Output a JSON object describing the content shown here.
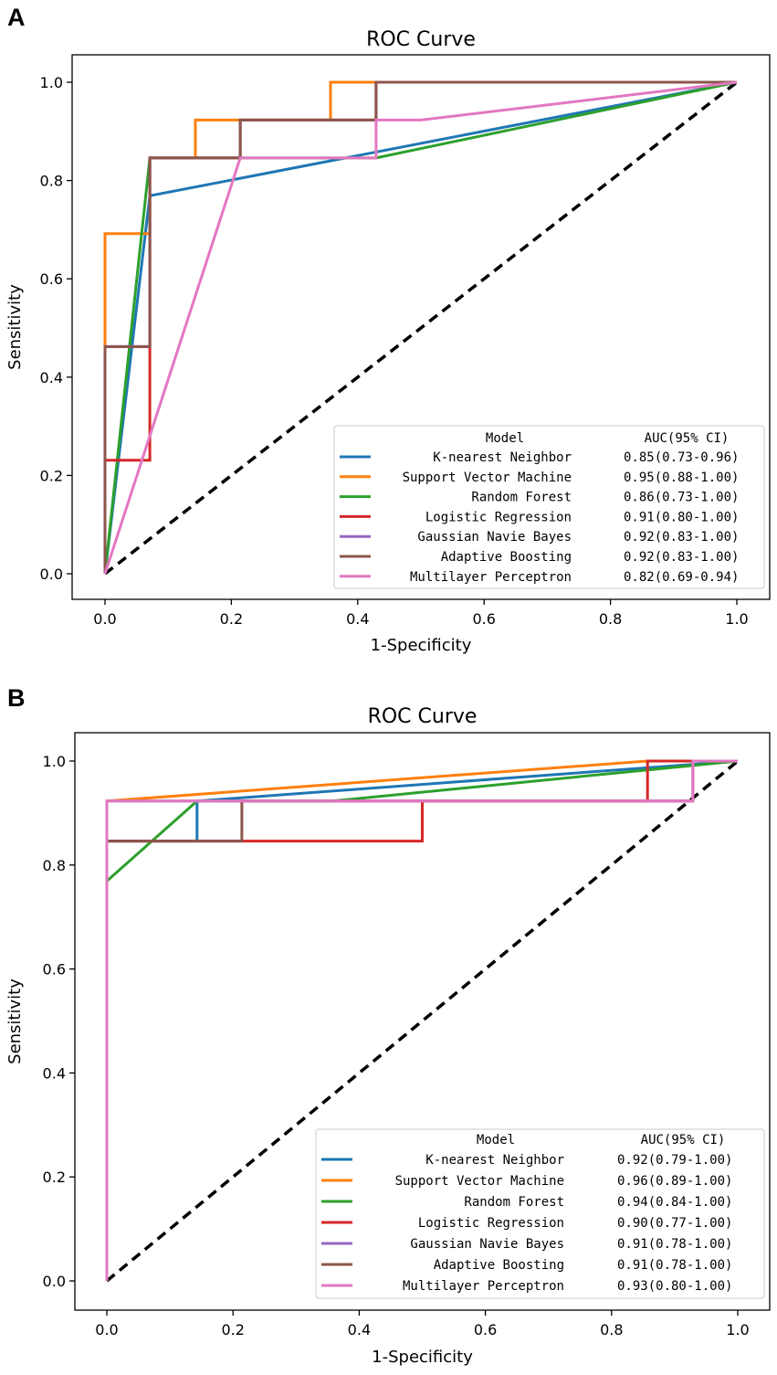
{
  "panels": [
    {
      "letter": "A"
    },
    {
      "letter": "B"
    }
  ],
  "chart_data": [
    {
      "type": "line",
      "title": "ROC Curve",
      "xlabel": "1-Specificity",
      "ylabel": "Sensitivity",
      "xlim": [
        0,
        1
      ],
      "ylim": [
        0,
        1
      ],
      "xticks": [
        "0.0",
        "0.2",
        "0.4",
        "0.6",
        "0.8",
        "1.0"
      ],
      "yticks": [
        "0.0",
        "0.2",
        "0.4",
        "0.6",
        "0.8",
        "1.0"
      ],
      "grid": false,
      "legend_placement": "bottom-right",
      "legend_header": {
        "model": "Model",
        "auc": "AUC(95% CI)"
      },
      "reference_line": {
        "name": "chance",
        "color": "#000000",
        "style": "dashed",
        "x": [
          0,
          1
        ],
        "y": [
          0,
          1
        ]
      },
      "series": [
        {
          "name": "K-nearest Neighbor",
          "auc": "0.85(0.73-0.96)",
          "color": "#1f77b4",
          "x": [
            0,
            0.071,
            1
          ],
          "y": [
            0,
            0.769,
            1
          ]
        },
        {
          "name": "Support Vector Machine",
          "auc": "0.95(0.88-1.00)",
          "color": "#ff7f0e",
          "x": [
            0,
            0,
            0.071,
            0.071,
            0.143,
            0.143,
            0.357,
            0.357,
            1
          ],
          "y": [
            0,
            0.692,
            0.692,
            0.846,
            0.846,
            0.923,
            0.923,
            1,
            1
          ]
        },
        {
          "name": "Random Forest",
          "auc": "0.86(0.73-1.00)",
          "color": "#2ca02c",
          "x": [
            0,
            0.071,
            0.429,
            1
          ],
          "y": [
            0,
            0.846,
            0.846,
            1
          ]
        },
        {
          "name": "Logistic Regression",
          "auc": "0.91(0.80-1.00)",
          "color": "#d62728",
          "x": [
            0,
            0,
            0.071,
            0.071,
            0.214,
            0.214,
            0.429,
            0.429,
            1
          ],
          "y": [
            0,
            0.231,
            0.231,
            0.846,
            0.846,
            0.923,
            0.923,
            1,
            1
          ]
        },
        {
          "name": "Gaussian Navie Bayes",
          "auc": "0.92(0.83-1.00)",
          "color": "#9467bd",
          "x": [
            0,
            0,
            0.071,
            0.071,
            0.214,
            0.214,
            0.429,
            0.429,
            1
          ],
          "y": [
            0,
            0.462,
            0.462,
            0.846,
            0.846,
            0.923,
            0.923,
            1,
            1
          ]
        },
        {
          "name": "Adaptive Boosting",
          "auc": "0.92(0.83-1.00)",
          "color": "#8c564b",
          "x": [
            0,
            0,
            0.071,
            0.071,
            0.214,
            0.214,
            0.429,
            0.429,
            1
          ],
          "y": [
            0,
            0.462,
            0.462,
            0.846,
            0.846,
            0.923,
            0.923,
            1,
            1
          ]
        },
        {
          "name": "Multilayer Perceptron",
          "auc": "0.82(0.69-0.94)",
          "color": "#e377c2",
          "x": [
            0,
            0.214,
            0.429,
            0.429,
            0.5,
            1
          ],
          "y": [
            0,
            0.846,
            0.846,
            0.923,
            0.923,
            1
          ]
        }
      ]
    },
    {
      "type": "line",
      "title": "ROC Curve",
      "xlabel": "1-Specificity",
      "ylabel": "Sensitivity",
      "xlim": [
        0,
        1
      ],
      "ylim": [
        0,
        1
      ],
      "xticks": [
        "0.0",
        "0.2",
        "0.4",
        "0.6",
        "0.8",
        "1.0"
      ],
      "yticks": [
        "0.0",
        "0.2",
        "0.4",
        "0.6",
        "0.8",
        "1.0"
      ],
      "grid": false,
      "legend_placement": "bottom-right",
      "legend_header": {
        "model": "Model",
        "auc": "AUC(95% CI)"
      },
      "reference_line": {
        "name": "chance",
        "color": "#000000",
        "style": "dashed",
        "x": [
          0,
          1
        ],
        "y": [
          0,
          1
        ]
      },
      "series": [
        {
          "name": "K-nearest Neighbor",
          "auc": "0.92(0.79-1.00)",
          "color": "#1f77b4",
          "x": [
            0,
            0,
            0.143,
            0.143,
            1
          ],
          "y": [
            0,
            0.846,
            0.846,
            0.923,
            1
          ]
        },
        {
          "name": "Support Vector Machine",
          "auc": "0.96(0.89-1.00)",
          "color": "#ff7f0e",
          "x": [
            0,
            0,
            0.857,
            1
          ],
          "y": [
            0,
            0.923,
            1,
            1
          ]
        },
        {
          "name": "Random Forest",
          "auc": "0.94(0.84-1.00)",
          "color": "#2ca02c",
          "x": [
            0,
            0,
            0.143,
            0.357,
            1
          ],
          "y": [
            0,
            0.769,
            0.923,
            0.923,
            1
          ]
        },
        {
          "name": "Logistic Regression",
          "auc": "0.90(0.77-1.00)",
          "color": "#d62728",
          "x": [
            0,
            0,
            0.5,
            0.5,
            0.857,
            0.857,
            1
          ],
          "y": [
            0,
            0.846,
            0.846,
            0.923,
            0.923,
            1,
            1
          ]
        },
        {
          "name": "Gaussian Navie Bayes",
          "auc": "0.91(0.78-1.00)",
          "color": "#9467bd",
          "x": [
            0,
            0,
            0.929,
            0.929,
            1
          ],
          "y": [
            0,
            0.923,
            0.923,
            1,
            1
          ]
        },
        {
          "name": "Adaptive Boosting",
          "auc": "0.91(0.78-1.00)",
          "color": "#8c564b",
          "x": [
            0,
            0,
            0.214,
            0.214,
            0.929,
            0.929,
            1
          ],
          "y": [
            0,
            0.846,
            0.846,
            0.923,
            0.923,
            1,
            1
          ]
        },
        {
          "name": "Multilayer Perceptron",
          "auc": "0.93(0.80-1.00)",
          "color": "#e377c2",
          "x": [
            0,
            0,
            0.929,
            0.929,
            1
          ],
          "y": [
            0,
            0.923,
            0.923,
            1,
            1
          ]
        }
      ]
    }
  ]
}
